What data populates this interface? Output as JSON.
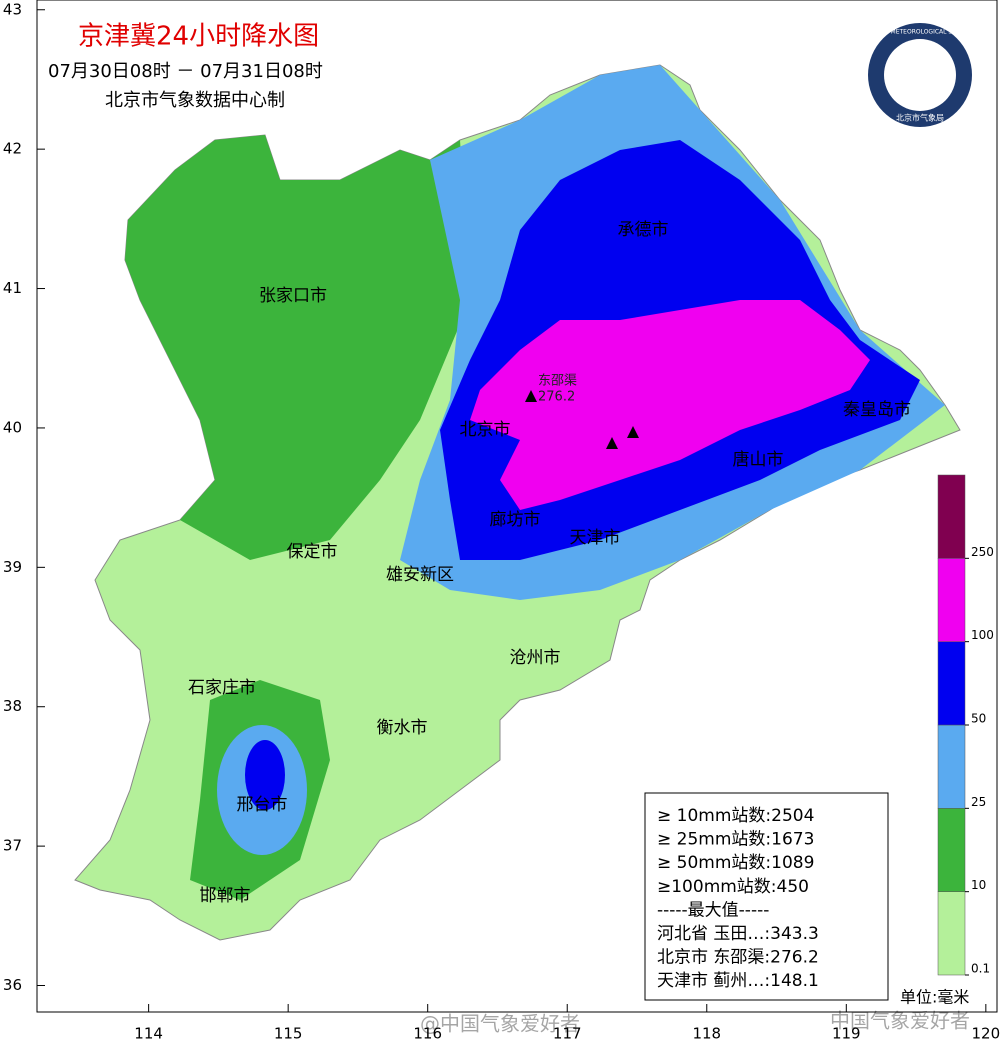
{
  "header": {
    "title": "京津冀24小时降水图",
    "period": "07月30日08时 － 07月31日08时",
    "producer": "北京市气象数据中心制"
  },
  "logo": {
    "ring_text": "BEIJING METEOROLOGICAL SERVICE",
    "name": "北京市气象局"
  },
  "axes": {
    "xlim": [
      113.2,
      120.08
    ],
    "ylim": [
      35.81,
      43.07
    ],
    "xticks": [
      114,
      115,
      116,
      117,
      118,
      119,
      120
    ],
    "yticks": [
      36,
      37,
      38,
      39,
      40,
      41,
      42,
      43
    ]
  },
  "cities": [
    "张家口市",
    "承德市",
    "北京市",
    "秦皇岛市",
    "唐山市",
    "廊坊市",
    "天津市",
    "保定市",
    "雄安新区",
    "沧州市",
    "石家庄市",
    "衡水市",
    "邢台市",
    "邯郸市"
  ],
  "stations": [
    {
      "name": "东邵渠",
      "value": "276.2"
    }
  ],
  "legend": {
    "levels": [
      0.1,
      10,
      25,
      50,
      100,
      250
    ],
    "colors": [
      "#b4f09a",
      "#3cb43c",
      "#5aaaf0",
      "#0000f0",
      "#f000f0",
      "#800050"
    ],
    "unit": "单位:毫米"
  },
  "stats": {
    "lines": [
      "≥ 10mm站数:2504",
      "≥ 25mm站数:1673",
      "≥ 50mm站数:1089",
      "≥100mm站数:450",
      "-----最大值-----",
      "河北省 玉田…:343.3",
      "北京市 东邵渠:276.2",
      "天津市 蓟州…:148.1"
    ]
  },
  "watermarks": [
    "@中国气象爱好者",
    "中国气象爱好者"
  ]
}
